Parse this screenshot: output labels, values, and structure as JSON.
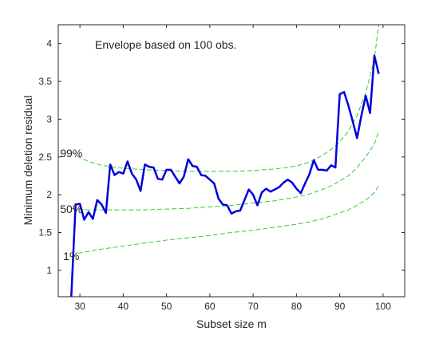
{
  "chart_data": {
    "type": "line",
    "title": "",
    "xlabel": "Subset size m",
    "ylabel": "Minimum deletion residual",
    "annotation": "Envelope based on 100 obs.",
    "xlim": [
      25,
      105
    ],
    "ylim": [
      0.65,
      4.25
    ],
    "xticks": [
      30,
      40,
      50,
      60,
      70,
      80,
      90,
      100
    ],
    "yticks": [
      1,
      1.5,
      2,
      2.5,
      3,
      3.5,
      4
    ],
    "envelope_labels": [
      {
        "text": "99%",
        "x": 28,
        "y": 2.55
      },
      {
        "text": "50%",
        "x": 28,
        "y": 1.81
      },
      {
        "text": "1%",
        "x": 28,
        "y": 1.19
      }
    ],
    "colors": {
      "observed": "#0000dd",
      "envelope": "#33cc33",
      "axes": "#262626"
    },
    "series": [
      {
        "role": "observed",
        "x": [
          28,
          29,
          30,
          31,
          32,
          33,
          34,
          35,
          36,
          37,
          38,
          39,
          40,
          41,
          42,
          43,
          44,
          45,
          46,
          47,
          48,
          49,
          50,
          51,
          52,
          53,
          54,
          55,
          56,
          57,
          58,
          59,
          60,
          61,
          62,
          63,
          64,
          65,
          66,
          67,
          68,
          69,
          70,
          71,
          72,
          73,
          74,
          75,
          76,
          77,
          78,
          79,
          80,
          81,
          82,
          83,
          84,
          85,
          86,
          87,
          88,
          89,
          90,
          91,
          92,
          93,
          94,
          95,
          96,
          97,
          98,
          99
        ],
        "y": [
          0.65,
          1.87,
          1.88,
          1.67,
          1.77,
          1.68,
          1.93,
          1.87,
          1.76,
          2.4,
          2.26,
          2.3,
          2.28,
          2.44,
          2.28,
          2.2,
          2.05,
          2.4,
          2.37,
          2.36,
          2.21,
          2.2,
          2.33,
          2.33,
          2.24,
          2.15,
          2.24,
          2.47,
          2.38,
          2.37,
          2.26,
          2.25,
          2.2,
          2.15,
          1.95,
          1.87,
          1.86,
          1.75,
          1.78,
          1.79,
          1.93,
          2.07,
          2.0,
          1.86,
          2.03,
          2.08,
          2.04,
          2.07,
          2.1,
          2.16,
          2.2,
          2.16,
          2.08,
          2.02,
          2.15,
          2.27,
          2.46,
          2.33,
          2.33,
          2.32,
          2.39,
          2.36,
          3.33,
          3.36,
          3.18,
          2.97,
          2.75,
          3.05,
          3.31,
          3.08,
          3.84,
          3.6
        ]
      },
      {
        "role": "envelope",
        "name": "99%",
        "x": [
          28,
          30,
          32,
          35,
          40,
          45,
          50,
          55,
          60,
          65,
          70,
          75,
          80,
          83,
          86,
          88,
          90,
          92,
          94,
          96,
          98,
          99
        ],
        "y": [
          2.57,
          2.49,
          2.44,
          2.39,
          2.35,
          2.33,
          2.32,
          2.31,
          2.31,
          2.31,
          2.32,
          2.34,
          2.38,
          2.43,
          2.52,
          2.6,
          2.7,
          2.84,
          3.05,
          3.35,
          3.8,
          4.25
        ]
      },
      {
        "role": "envelope",
        "name": "50%",
        "x": [
          28,
          30,
          32,
          35,
          40,
          45,
          50,
          55,
          60,
          65,
          70,
          75,
          80,
          83,
          86,
          88,
          90,
          92,
          94,
          96,
          98,
          99
        ],
        "y": [
          1.82,
          1.81,
          1.8,
          1.8,
          1.8,
          1.8,
          1.81,
          1.82,
          1.84,
          1.86,
          1.89,
          1.92,
          1.97,
          2.01,
          2.07,
          2.12,
          2.18,
          2.25,
          2.36,
          2.5,
          2.67,
          2.84
        ]
      },
      {
        "role": "envelope",
        "name": "1%",
        "x": [
          28,
          30,
          32,
          35,
          40,
          45,
          50,
          55,
          60,
          65,
          70,
          75,
          80,
          83,
          86,
          88,
          90,
          92,
          94,
          96,
          98,
          99
        ],
        "y": [
          1.18,
          1.23,
          1.25,
          1.28,
          1.32,
          1.36,
          1.4,
          1.43,
          1.46,
          1.5,
          1.53,
          1.57,
          1.61,
          1.64,
          1.68,
          1.72,
          1.76,
          1.8,
          1.86,
          1.93,
          2.03,
          2.12
        ]
      }
    ]
  }
}
